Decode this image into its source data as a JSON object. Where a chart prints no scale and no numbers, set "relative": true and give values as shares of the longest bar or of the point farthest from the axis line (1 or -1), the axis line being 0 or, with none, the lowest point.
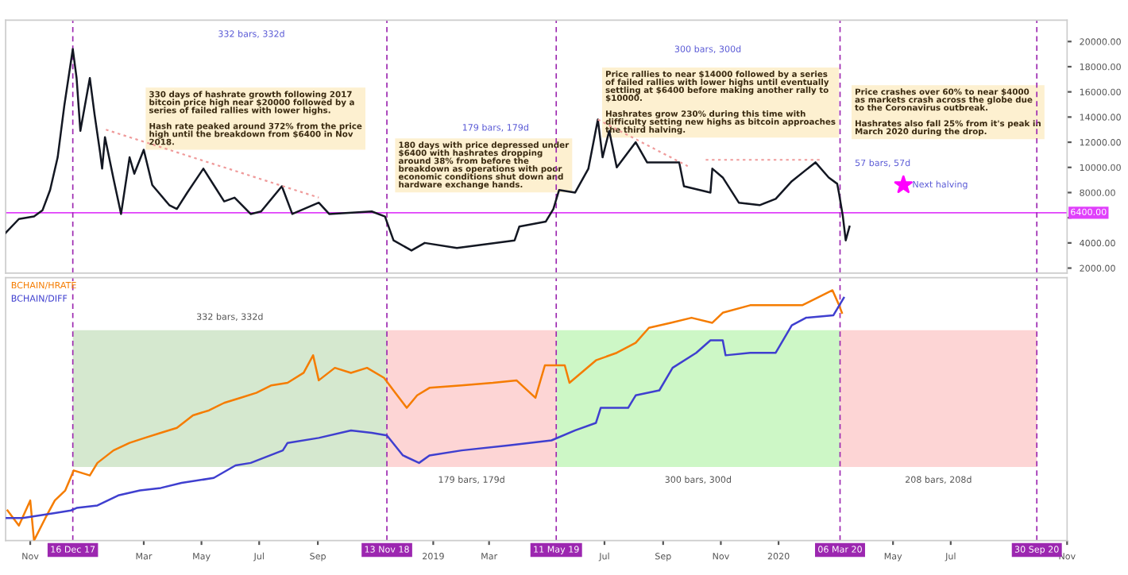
{
  "chart_data": [
    {
      "type": "line",
      "legend": false,
      "tick_labels": "y",
      "grid": false,
      "xlim": [
        "2017-10-06",
        "2020-11-01"
      ],
      "ylim": [
        1600,
        21700
      ],
      "yticks": [
        {
          "value": 2000,
          "label": "2000.00"
        },
        {
          "value": 4000,
          "label": "4000.00"
        },
        {
          "value": 6000,
          "label": null
        },
        {
          "value": 8000,
          "label": "8000.00"
        },
        {
          "value": 10000,
          "label": "10000.00"
        },
        {
          "value": 12000,
          "label": "12000.00"
        },
        {
          "value": 14000,
          "label": "14000.00"
        },
        {
          "value": 16000,
          "label": "16000.00"
        },
        {
          "value": 18000,
          "label": "18000.00"
        },
        {
          "value": 20000,
          "label": "20000.00"
        }
      ],
      "series": [
        {
          "color": "#131722",
          "x": [
            "2017-10-06",
            "2017-10-20",
            "2017-11-05",
            "2017-11-14",
            "2017-11-22",
            "2017-11-30",
            "2017-12-07",
            "2017-12-16",
            "2017-12-20",
            "2017-12-24",
            "2018-01-03",
            "2018-01-08",
            "2018-01-14",
            "2018-01-16",
            "2018-01-19",
            "2018-01-28",
            "2018-02-05",
            "2018-02-14",
            "2018-02-19",
            "2018-03-01",
            "2018-03-10",
            "2018-03-28",
            "2018-04-05",
            "2018-04-16",
            "2018-05-03",
            "2018-05-14",
            "2018-05-25",
            "2018-06-05",
            "2018-06-22",
            "2018-07-03",
            "2018-07-25",
            "2018-08-05",
            "2018-09-02",
            "2018-09-13",
            "2018-10-28",
            "2018-11-11",
            "2018-11-20",
            "2018-12-09",
            "2018-12-23",
            "2019-01-26",
            "2019-02-16",
            "2019-03-28",
            "2019-04-02",
            "2019-04-30",
            "2019-05-08",
            "2019-05-14",
            "2019-05-31",
            "2019-06-14",
            "2019-06-24",
            "2019-06-29",
            "2019-07-06",
            "2019-07-14",
            "2019-08-03",
            "2019-08-15",
            "2019-09-18",
            "2019-09-23",
            "2019-10-21",
            "2019-10-23",
            "2019-11-03",
            "2019-11-20",
            "2019-12-12",
            "2019-12-29",
            "2020-01-15",
            "2020-02-09",
            "2020-02-23",
            "2020-03-03",
            "2020-03-05",
            "2020-03-09",
            "2020-03-12",
            "2020-03-16"
          ],
          "values": [
            4800,
            5900,
            6100,
            6600,
            8200,
            10800,
            14900,
            19400,
            17100,
            12900,
            17100,
            14200,
            11100,
            9900,
            12400,
            9100,
            6300,
            10800,
            9500,
            11400,
            8600,
            7000,
            6700,
            8000,
            9900,
            8600,
            7300,
            7600,
            6300,
            6500,
            8500,
            6300,
            7200,
            6300,
            6500,
            6100,
            4200,
            3400,
            4000,
            3600,
            3800,
            4200,
            5300,
            5700,
            6700,
            8200,
            8000,
            9900,
            13800,
            10800,
            12900,
            10000,
            12000,
            10400,
            10400,
            8500,
            8000,
            9900,
            9200,
            7200,
            7000,
            7500,
            8900,
            10400,
            9200,
            8700,
            7900,
            6100,
            4200,
            5300
          ]
        },
        {
          "type": "line",
          "line_style": "dotted",
          "color": "#ef9a9a",
          "x": [
            "2018-01-20",
            "2018-09-02"
          ],
          "values": [
            13000,
            7600
          ]
        },
        {
          "type": "line",
          "line_style": "dotted",
          "color": "#ef9a9a",
          "x": [
            "2019-06-24",
            "2019-09-27"
          ],
          "values": [
            13800,
            10100
          ]
        },
        {
          "type": "line",
          "line_style": "dotted",
          "color": "#ef9a9a",
          "x": [
            "2019-10-16",
            "2020-02-14"
          ],
          "values": [
            10600,
            10600
          ]
        },
        {
          "type": "scatter",
          "marker": "star",
          "color": "#ff00ff",
          "x": [
            "2020-05-12"
          ],
          "values": [
            8600
          ]
        }
      ],
      "ref_lines": [
        {
          "axis": "y",
          "value": 6400,
          "label": "6400.00",
          "color": "#e040fb",
          "line_style": "solid"
        },
        {
          "axis": "x",
          "value": "2017-12-16",
          "color": "#9c27b0",
          "line_style": "dashed"
        },
        {
          "axis": "x",
          "value": "2018-11-13",
          "color": "#9c27b0",
          "line_style": "dashed"
        },
        {
          "axis": "x",
          "value": "2019-05-11",
          "color": "#9c27b0",
          "line_style": "dashed"
        },
        {
          "axis": "x",
          "value": "2020-03-06",
          "color": "#9c27b0",
          "line_style": "dashed"
        },
        {
          "axis": "x",
          "value": "2020-09-30",
          "color": "#9c27b0",
          "line_style": "dashed"
        }
      ],
      "annotations": [
        "332 bars, 332d",
        "179 bars, 179d",
        "300 bars, 300d",
        "57 bars, 57d",
        {
          "text": "Next halving",
          "x": "2020-05-12",
          "y": 8600
        },
        "330 days of hashrate growth following 2017\nbitcoin price high near $20000 followed by a\nseries of failed rallies with lower highs.\n\nHash rate peaked around 372% from the price\nhigh until the breakdown from $6400 in Nov\n2018.",
        "180 days with price depressed under\n$6400 with hashrates dropping\naround 38% from before the\nbreakdown as operations with poor\neconomic conditions shut down and\nhardware exchange hands.",
        "Price rallies to near $14000 followed by a series\nof failed rallies with lower highs until eventually\nsettling at $6400 before making another rally to\n$10000.\n\nHashrates grow 230% during this time with\ndifficulty setting new highs as bitcoin approaches\nthe third halving.",
        "Price crashes over 60% to near $4000\nas markets crash across the globe due\nto the Coronavirus outbreak.\n\nHashrates also fall 25% from it's peak in\nMarch 2020 during the drop."
      ]
    },
    {
      "type": "line",
      "relative": true,
      "legend": false,
      "tick_labels": "x",
      "grid": false,
      "xlim": [
        "2017-10-06",
        "2020-11-01"
      ],
      "xticks": [
        {
          "value": "2017-11-01",
          "label": "Nov"
        },
        {
          "value": "2018-03-01",
          "label": "Mar"
        },
        {
          "value": "2018-05-01",
          "label": "May"
        },
        {
          "value": "2018-07-01",
          "label": "Jul"
        },
        {
          "value": "2018-09-01",
          "label": "Sep"
        },
        {
          "value": "2019-01-01",
          "label": "2019"
        },
        {
          "value": "2019-03-01",
          "label": "Mar"
        },
        {
          "value": "2019-07-01",
          "label": "Jul"
        },
        {
          "value": "2019-09-01",
          "label": "Sep"
        },
        {
          "value": "2019-11-01",
          "label": "Nov"
        },
        {
          "value": "2020-01-01",
          "label": "2020"
        },
        {
          "value": "2020-05-01",
          "label": "May"
        },
        {
          "value": "2020-07-01",
          "label": "Jul"
        },
        {
          "value": "2020-11-01",
          "label": "Nov"
        }
      ],
      "series": [
        {
          "name": "BCHAIN/HRATE",
          "color": "#f57c00",
          "x": [
            "2017-10-08",
            "2017-10-20",
            "2017-11-01",
            "2017-11-05",
            "2017-11-17",
            "2017-11-27",
            "2017-12-08",
            "2017-12-17",
            "2018-01-03",
            "2018-01-11",
            "2018-01-28",
            "2018-02-14",
            "2018-03-02",
            "2018-03-19",
            "2018-04-05",
            "2018-04-22",
            "2018-05-09",
            "2018-05-25",
            "2018-06-11",
            "2018-06-28",
            "2018-07-14",
            "2018-07-31",
            "2018-08-17",
            "2018-08-27",
            "2018-09-02",
            "2018-09-19",
            "2018-10-06",
            "2018-10-23",
            "2018-11-10",
            "2018-11-22",
            "2018-12-04",
            "2018-12-15",
            "2018-12-28",
            "2019-01-31",
            "2019-03-05",
            "2019-03-30",
            "2019-04-19",
            "2019-04-29",
            "2019-05-20",
            "2019-05-25",
            "2019-06-22",
            "2019-07-14",
            "2019-08-03",
            "2019-08-17",
            "2019-09-09",
            "2019-10-01",
            "2019-10-23",
            "2019-11-03",
            "2019-12-02",
            "2019-12-29",
            "2020-01-26",
            "2020-02-27",
            "2020-03-05",
            "2020-03-08"
          ],
          "values": [
            0.12,
            0.06,
            0.16,
            0,
            0.09,
            0.16,
            0.2,
            0.28,
            0.26,
            0.31,
            0.36,
            0.39,
            0.41,
            0.43,
            0.45,
            0.5,
            0.52,
            0.55,
            0.57,
            0.59,
            0.62,
            0.63,
            0.67,
            0.74,
            0.64,
            0.69,
            0.67,
            0.69,
            0.65,
            0.59,
            0.53,
            0.58,
            0.61,
            0.62,
            0.63,
            0.64,
            0.57,
            0.7,
            0.7,
            0.63,
            0.72,
            0.75,
            0.79,
            0.85,
            0.87,
            0.89,
            0.87,
            0.91,
            0.94,
            0.94,
            0.94,
            1.0,
            0.94,
            0.91
          ]
        },
        {
          "name": "BCHAIN/DIFF",
          "color": "#3f3fcf",
          "x": [
            "2017-10-06",
            "2017-10-24",
            "2017-11-27",
            "2017-12-14",
            "2017-12-20",
            "2018-01-11",
            "2018-02-02",
            "2018-02-25",
            "2018-03-19",
            "2018-04-10",
            "2018-05-14",
            "2018-06-06",
            "2018-06-22",
            "2018-07-26",
            "2018-07-31",
            "2018-09-02",
            "2018-10-06",
            "2018-10-28",
            "2018-11-13",
            "2018-11-30",
            "2018-12-17",
            "2018-12-28",
            "2019-01-31",
            "2019-03-22",
            "2019-05-06",
            "2019-05-31",
            "2019-06-22",
            "2019-06-27",
            "2019-07-26",
            "2019-08-03",
            "2019-08-28",
            "2019-09-11",
            "2019-10-06",
            "2019-10-21",
            "2019-11-03",
            "2019-11-06",
            "2019-12-02",
            "2019-12-29",
            "2020-01-15",
            "2020-01-30",
            "2020-02-28",
            "2020-03-10"
          ],
          "values": [
            0.09,
            0.09,
            0.11,
            0.12,
            0.13,
            0.14,
            0.18,
            0.2,
            0.21,
            0.23,
            0.25,
            0.3,
            0.31,
            0.36,
            0.39,
            0.41,
            0.44,
            0.43,
            0.42,
            0.34,
            0.31,
            0.34,
            0.36,
            0.38,
            0.4,
            0.44,
            0.47,
            0.53,
            0.53,
            0.58,
            0.6,
            0.69,
            0.75,
            0.8,
            0.8,
            0.74,
            0.75,
            0.75,
            0.86,
            0.89,
            0.9,
            0.97
          ]
        }
      ],
      "bands": [
        {
          "axis": "x",
          "from": "2017-12-16",
          "to": "2018-11-13",
          "label": "332 bars, 332d",
          "color": "#d5e8cf"
        },
        {
          "axis": "x",
          "from": "2018-11-13",
          "to": "2019-05-11",
          "label": "179 bars, 179d",
          "color": "#fdd5d5"
        },
        {
          "axis": "x",
          "from": "2019-05-11",
          "to": "2020-03-06",
          "label": "300 bars, 300d",
          "color": "#cdf7c6"
        },
        {
          "axis": "x",
          "from": "2020-03-06",
          "to": "2020-09-30",
          "label": "208 bars, 208d",
          "color": "#fdd5d5"
        }
      ],
      "ref_lines": [
        {
          "axis": "x",
          "value": "2017-12-16",
          "label": "16 Dec 17",
          "color": "#9c27b0",
          "line_style": "dashed"
        },
        {
          "axis": "x",
          "value": "2018-11-13",
          "label": "13 Nov 18",
          "color": "#9c27b0",
          "line_style": "dashed"
        },
        {
          "axis": "x",
          "value": "2019-05-11",
          "label": "11 May 19",
          "color": "#9c27b0",
          "line_style": "dashed"
        },
        {
          "axis": "x",
          "value": "2020-03-06",
          "label": "06 Mar 20",
          "color": "#9c27b0",
          "line_style": "dashed"
        },
        {
          "axis": "x",
          "value": "2020-09-30",
          "label": "30 Sep 20",
          "color": "#9c27b0",
          "line_style": "dashed"
        }
      ]
    }
  ]
}
